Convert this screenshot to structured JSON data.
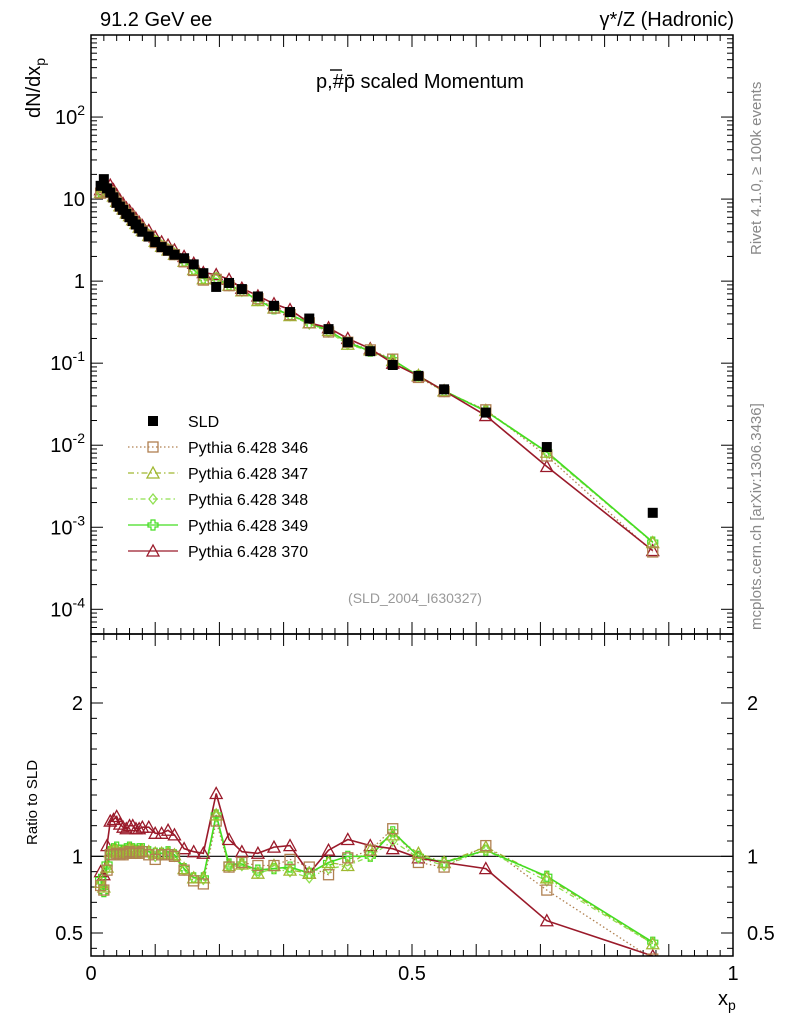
{
  "header": {
    "left": "91.2 GeV ee",
    "right": "γ*/Z (Hadronic)"
  },
  "side_labels": {
    "rivet": "Rivet 4.1.0, ≥ 100k events",
    "mcplots": "mcplots.cern.ch [arXiv:1306.3436]"
  },
  "chart_data": [
    {
      "type": "scatter",
      "title": "p,#p̄ scaled Momentum",
      "reference": "(SLD_2004_I630327)",
      "xlabel": "x_p",
      "ylabel": "dN/dx_p",
      "xlim": [
        0,
        1
      ],
      "ylim": [
        5e-05,
        1000
      ],
      "yscale": "log",
      "ytick_labels": [
        "10^-4",
        "10^-3",
        "10^-2",
        "10^-1",
        "1",
        "10",
        "10^2"
      ],
      "legend_position": "center-left",
      "x": [
        0.015,
        0.02,
        0.025,
        0.03,
        0.035,
        0.04,
        0.045,
        0.05,
        0.055,
        0.06,
        0.065,
        0.07,
        0.075,
        0.08,
        0.09,
        0.1,
        0.11,
        0.12,
        0.13,
        0.145,
        0.16,
        0.175,
        0.195,
        0.215,
        0.235,
        0.26,
        0.285,
        0.31,
        0.34,
        0.37,
        0.4,
        0.435,
        0.47,
        0.51,
        0.55,
        0.615,
        0.71,
        0.875
      ],
      "series": [
        {
          "name": "SLD",
          "style": "ref",
          "color": "#000000",
          "values": [
            14.5,
            17.5,
            13.5,
            12.0,
            10.5,
            9.0,
            8.1,
            7.4,
            6.6,
            6.0,
            5.4,
            4.9,
            4.4,
            4.0,
            3.5,
            3.0,
            2.6,
            2.35,
            2.1,
            1.9,
            1.6,
            1.25,
            0.85,
            0.95,
            0.8,
            0.65,
            0.5,
            0.42,
            0.35,
            0.26,
            0.18,
            0.14,
            0.095,
            0.07,
            0.048,
            0.025,
            0.0095,
            0.0015
          ]
        },
        {
          "name": "Pythia 6.428 346",
          "style": "square-dotted",
          "color": "#b08050",
          "values": [
            11.8,
            13.7,
            12.3,
            12.1,
            10.6,
            9.2,
            8.2,
            7.5,
            6.7,
            6.2,
            5.5,
            5.0,
            4.5,
            4.1,
            3.55,
            2.95,
            2.62,
            2.38,
            2.1,
            1.72,
            1.35,
            1.03,
            1.05,
            0.88,
            0.77,
            0.61,
            0.47,
            0.39,
            0.31,
            0.24,
            0.18,
            0.145,
            0.112,
            0.067,
            0.045,
            0.027,
            0.0074,
            0.0005
          ]
        },
        {
          "name": "Pythia 6.428 347",
          "style": "triangle-dashdot",
          "color": "#a0b830",
          "values": [
            12.1,
            14.2,
            12.6,
            12.3,
            10.9,
            9.4,
            8.3,
            7.6,
            6.8,
            6.3,
            5.6,
            5.05,
            4.55,
            4.15,
            3.6,
            3.05,
            2.65,
            2.4,
            2.12,
            1.74,
            1.38,
            1.07,
            1.08,
            0.89,
            0.76,
            0.58,
            0.47,
            0.38,
            0.31,
            0.25,
            0.17,
            0.145,
            0.108,
            0.071,
            0.046,
            0.0265,
            0.0082,
            0.00065
          ]
        },
        {
          "name": "Pythia 6.428 348",
          "style": "diamond-dashdot",
          "color": "#90e050",
          "values": [
            12.0,
            14.0,
            12.5,
            12.2,
            10.8,
            9.3,
            8.25,
            7.55,
            6.75,
            6.25,
            5.55,
            5.02,
            4.52,
            4.12,
            3.58,
            3.0,
            2.63,
            2.39,
            2.11,
            1.73,
            1.37,
            1.06,
            1.07,
            0.88,
            0.75,
            0.58,
            0.46,
            0.38,
            0.3,
            0.24,
            0.17,
            0.14,
            0.105,
            0.069,
            0.045,
            0.026,
            0.008,
            0.00065
          ]
        },
        {
          "name": "Pythia 6.428 349",
          "style": "cross-solid",
          "color": "#44dd22",
          "values": [
            12.3,
            13.4,
            12.8,
            12.4,
            11.0,
            9.5,
            8.4,
            7.7,
            6.9,
            6.35,
            5.65,
            5.1,
            4.6,
            4.2,
            3.62,
            3.05,
            2.66,
            2.41,
            2.13,
            1.75,
            1.38,
            1.08,
            1.08,
            0.9,
            0.76,
            0.59,
            0.46,
            0.39,
            0.31,
            0.25,
            0.18,
            0.14,
            0.11,
            0.07,
            0.046,
            0.026,
            0.0083,
            0.00066
          ]
        },
        {
          "name": "Pythia 6.428 370",
          "style": "triangle-solid",
          "color": "#9a1a2a",
          "values": [
            13.0,
            15.5,
            14.5,
            14.8,
            13.0,
            11.3,
            9.8,
            8.8,
            7.8,
            7.2,
            6.5,
            5.8,
            5.2,
            4.75,
            4.15,
            3.45,
            3.0,
            2.75,
            2.4,
            2.0,
            1.65,
            1.27,
            1.2,
            1.05,
            0.82,
            0.66,
            0.53,
            0.45,
            0.31,
            0.27,
            0.2,
            0.15,
            0.1,
            0.07,
            0.046,
            0.023,
            0.0055,
            0.00052
          ]
        }
      ]
    },
    {
      "type": "line",
      "title": "",
      "xlabel": "x_p",
      "ylabel": "Ratio to SLD",
      "xlim": [
        0,
        1
      ],
      "ylim": [
        0.35,
        2.45
      ],
      "xticks": [
        0,
        0.5,
        1
      ],
      "xtick_labels": [
        "0",
        "0.5",
        "1"
      ],
      "yticks": [
        0.5,
        1,
        2
      ],
      "ytick_labels": [
        "0.5",
        "1",
        "2"
      ],
      "reference_line": 1,
      "x": [
        0.015,
        0.02,
        0.025,
        0.03,
        0.035,
        0.04,
        0.045,
        0.05,
        0.055,
        0.06,
        0.065,
        0.07,
        0.075,
        0.08,
        0.09,
        0.1,
        0.11,
        0.12,
        0.13,
        0.145,
        0.16,
        0.175,
        0.195,
        0.215,
        0.235,
        0.26,
        0.285,
        0.31,
        0.34,
        0.37,
        0.4,
        0.435,
        0.47,
        0.51,
        0.55,
        0.615,
        0.71,
        0.875
      ],
      "series": [
        {
          "name": "Pythia 6.428 346",
          "color": "#b08050",
          "values": [
            0.81,
            0.78,
            0.91,
            1.01,
            1.01,
            1.02,
            1.01,
            1.01,
            1.02,
            1.03,
            1.02,
            1.02,
            1.02,
            1.03,
            1.01,
            0.98,
            1.01,
            1.01,
            1.0,
            0.91,
            0.84,
            0.82,
            1.23,
            0.93,
            0.96,
            0.94,
            0.94,
            0.98,
            0.93,
            0.88,
            0.99,
            1.04,
            1.18,
            0.96,
            0.93,
            1.07,
            0.78,
            0.33
          ]
        },
        {
          "name": "Pythia 6.428 347",
          "color": "#a0b830",
          "values": [
            0.83,
            0.8,
            0.93,
            1.03,
            1.04,
            1.04,
            1.02,
            1.03,
            1.03,
            1.05,
            1.04,
            1.03,
            1.03,
            1.04,
            1.03,
            1.02,
            1.02,
            1.02,
            1.01,
            0.92,
            0.86,
            0.86,
            1.27,
            0.94,
            0.95,
            0.89,
            0.94,
            0.91,
            0.89,
            0.96,
            0.94,
            1.04,
            1.14,
            1.02,
            0.96,
            1.06,
            0.86,
            0.43
          ]
        },
        {
          "name": "Pythia 6.428 348",
          "color": "#90e050",
          "values": [
            0.83,
            0.8,
            0.92,
            1.02,
            1.03,
            1.03,
            1.02,
            1.02,
            1.02,
            1.04,
            1.03,
            1.02,
            1.03,
            1.03,
            1.02,
            1.0,
            1.01,
            1.02,
            1.0,
            0.91,
            0.86,
            0.85,
            1.26,
            0.93,
            0.94,
            0.89,
            0.92,
            0.9,
            0.86,
            0.92,
            0.94,
            1.0,
            1.1,
            0.99,
            0.94,
            1.04,
            0.84,
            0.43
          ]
        },
        {
          "name": "Pythia 6.428 349",
          "color": "#44dd22",
          "values": [
            0.85,
            0.77,
            0.95,
            1.03,
            1.05,
            1.06,
            1.04,
            1.04,
            1.05,
            1.06,
            1.05,
            1.04,
            1.05,
            1.05,
            1.03,
            1.02,
            1.02,
            1.03,
            1.01,
            0.92,
            0.86,
            0.86,
            1.27,
            0.95,
            0.95,
            0.91,
            0.92,
            0.93,
            0.89,
            0.96,
            1.0,
            1.0,
            1.16,
            1.0,
            0.96,
            1.04,
            0.87,
            0.44
          ]
        },
        {
          "name": "Pythia 6.428 370",
          "color": "#9a1a2a",
          "values": [
            0.9,
            0.88,
            1.07,
            1.23,
            1.24,
            1.26,
            1.21,
            1.19,
            1.18,
            1.2,
            1.2,
            1.18,
            1.18,
            1.19,
            1.19,
            1.15,
            1.15,
            1.17,
            1.14,
            1.05,
            1.03,
            1.02,
            1.41,
            1.11,
            1.03,
            1.02,
            1.06,
            1.07,
            0.89,
            1.04,
            1.11,
            1.07,
            1.05,
            0.99,
            0.96,
            0.92,
            0.58,
            0.35
          ]
        }
      ]
    }
  ]
}
